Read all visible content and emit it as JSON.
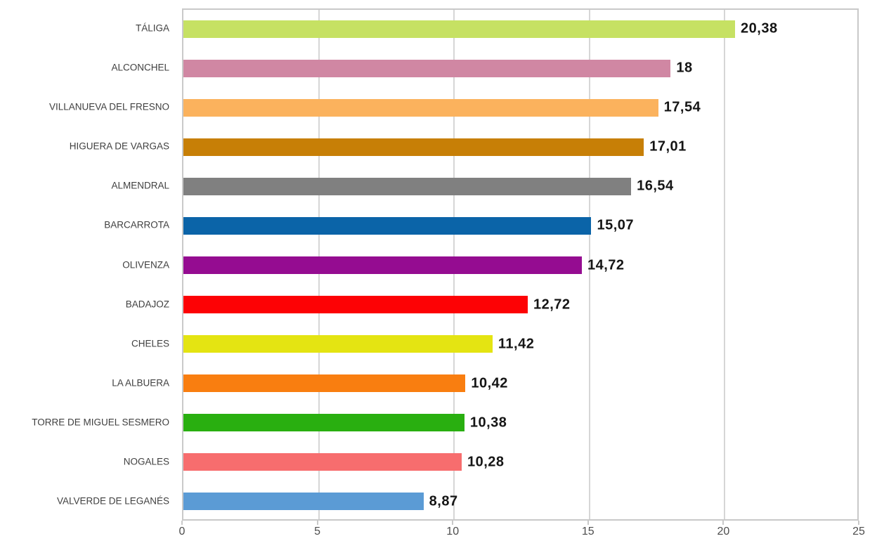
{
  "chart_data": {
    "type": "bar",
    "orientation": "horizontal",
    "title": "",
    "xlabel": "",
    "ylabel": "",
    "xlim": [
      0,
      25
    ],
    "xticks": [
      "0",
      "5",
      "10",
      "15",
      "20",
      "25"
    ],
    "xtick_values": [
      0,
      5,
      10,
      15,
      20,
      25
    ],
    "grid": "vertical",
    "legend": "none",
    "categories": [
      "TÁLIGA",
      "ALCONCHEL",
      "VILLANUEVA DEL FRESNO",
      "HIGUERA DE VARGAS",
      "ALMENDRAL",
      "BARCARROTA",
      "OLIVENZA",
      "BADAJOZ",
      "CHELES",
      "LA ALBUERA",
      "TORRE DE MIGUEL SESMERO",
      "NOGALES",
      "VALVERDE DE LEGANÉS"
    ],
    "values": [
      20.38,
      18,
      17.54,
      17.01,
      16.54,
      15.07,
      14.72,
      12.72,
      11.42,
      10.42,
      10.38,
      10.28,
      8.87
    ],
    "value_labels": [
      "20,38",
      "18",
      "17,54",
      "17,01",
      "16,54",
      "15,07",
      "14,72",
      "12,72",
      "11,42",
      "10,42",
      "10,38",
      "10,28",
      "8,87"
    ],
    "bar_colors": [
      "#c6e163",
      "#d087a3",
      "#fbb25d",
      "#c77f06",
      "#808080",
      "#0b64a8",
      "#950c91",
      "#fd0205",
      "#e4e412",
      "#f97e10",
      "#29af10",
      "#f76d6e",
      "#5b9bd5"
    ],
    "colors": {
      "gridline": "#d6d6d6",
      "plot_border": "#c9c9c9",
      "category_label": "#3f3f3f",
      "value_label": "#151515",
      "tick_label": "#4d4d4d",
      "background": "#ffffff"
    }
  }
}
